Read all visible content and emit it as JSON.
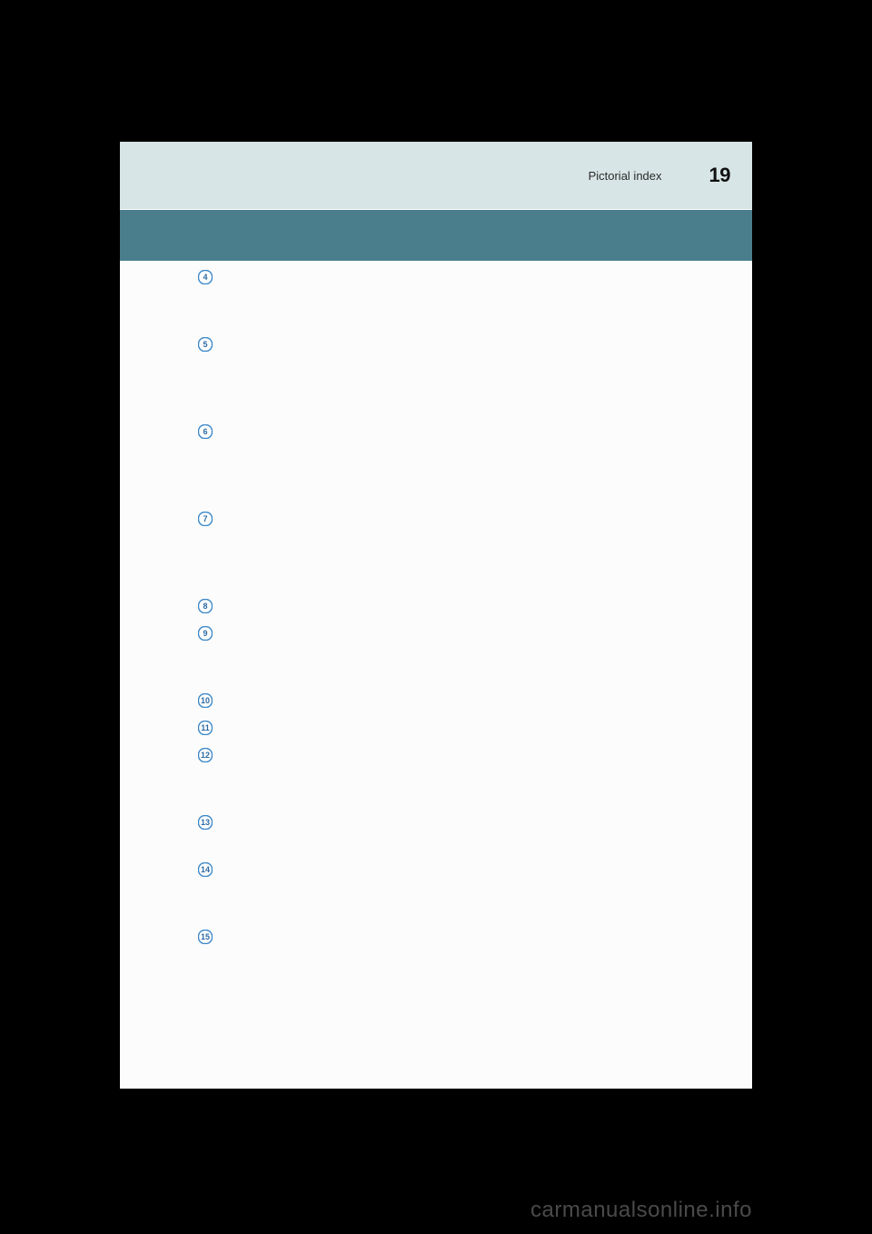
{
  "header": {
    "section": "Pictorial index",
    "page_number": "19"
  },
  "items": [
    {
      "num": 4,
      "spacers_after": 2
    },
    {
      "num": 5,
      "spacers_after": 3
    },
    {
      "num": 6,
      "spacers_after": 3
    },
    {
      "num": 7,
      "spacers_after": 3
    },
    {
      "num": 8,
      "spacers_after": 0
    },
    {
      "num": 9,
      "spacers_after": 2
    },
    {
      "num": 10,
      "spacers_after": 0
    },
    {
      "num": 11,
      "spacers_after": 0
    },
    {
      "num": 12,
      "spacers_after": 2
    },
    {
      "num": 13,
      "spacers_after": 1
    },
    {
      "num": 14,
      "spacers_after": 2
    },
    {
      "num": 15,
      "spacers_after": 0
    }
  ],
  "icon": {
    "outer_stroke": "#3b87c8",
    "inner_fill": "#ffffff",
    "inner_stroke": "#3b87c8",
    "number_color": "#2d6aa3"
  },
  "watermark": "carmanualsonline.info"
}
